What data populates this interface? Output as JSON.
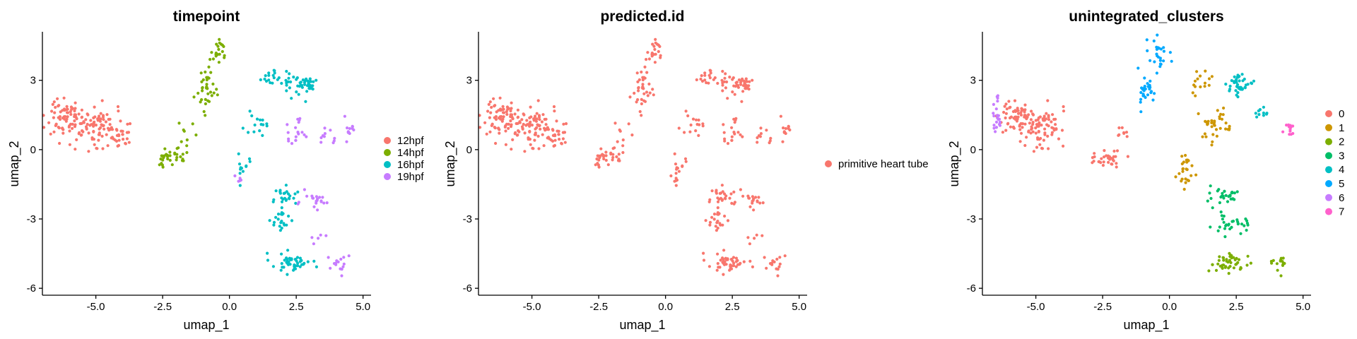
{
  "chart_data": [
    {
      "type": "scatter",
      "title": "timepoint",
      "xlabel": "umap_1",
      "ylabel": "umap_2",
      "xlim": [
        -7.0,
        5.3
      ],
      "ylim": [
        -6.3,
        5.1
      ],
      "xticks": [
        "-5.0",
        "-2.5",
        "0.0",
        "2.5",
        "5.0"
      ],
      "yticks": [
        "-6",
        "-3",
        "0",
        "3"
      ],
      "grid": false,
      "legend_position": "right",
      "series": [
        {
          "name": "12hpf",
          "color": "#F8766D",
          "regions": [
            {
              "center": [
                -6.1,
                1.3
              ],
              "spread": [
                0.55,
                0.8
              ],
              "count": 80
            },
            {
              "center": [
                -4.9,
                1.0
              ],
              "spread": [
                0.55,
                0.7
              ],
              "count": 75
            },
            {
              "center": [
                -4.0,
                0.6
              ],
              "spread": [
                0.4,
                0.45
              ],
              "count": 25
            }
          ]
        },
        {
          "name": "14hpf",
          "color": "#7CAE00",
          "regions": [
            {
              "center": [
                -2.3,
                -0.4
              ],
              "spread": [
                0.5,
                0.3
              ],
              "count": 32
            },
            {
              "center": [
                -1.6,
                0.7
              ],
              "spread": [
                0.3,
                0.4
              ],
              "count": 8
            },
            {
              "center": [
                -0.9,
                2.6
              ],
              "spread": [
                0.35,
                0.7
              ],
              "count": 35
            },
            {
              "center": [
                -0.4,
                4.3
              ],
              "spread": [
                0.25,
                0.4
              ],
              "count": 20
            }
          ]
        },
        {
          "name": "16hpf",
          "color": "#00BFC4",
          "regions": [
            {
              "center": [
                1.6,
                3.1
              ],
              "spread": [
                0.4,
                0.35
              ],
              "count": 20
            },
            {
              "center": [
                2.7,
                2.8
              ],
              "spread": [
                0.5,
                0.45
              ],
              "count": 45
            },
            {
              "center": [
                1.0,
                1.1
              ],
              "spread": [
                0.35,
                0.45
              ],
              "count": 15
            },
            {
              "center": [
                0.5,
                -0.7
              ],
              "spread": [
                0.25,
                0.6
              ],
              "count": 12
            },
            {
              "center": [
                2.0,
                -2.0
              ],
              "spread": [
                0.45,
                0.45
              ],
              "count": 25
            },
            {
              "center": [
                2.0,
                -3.1
              ],
              "spread": [
                0.45,
                0.4
              ],
              "count": 20
            },
            {
              "center": [
                2.3,
                -4.9
              ],
              "spread": [
                0.6,
                0.35
              ],
              "count": 45
            }
          ]
        },
        {
          "name": "19hpf",
          "color": "#C77CFF",
          "regions": [
            {
              "center": [
                4.5,
                0.9
              ],
              "spread": [
                0.2,
                0.35
              ],
              "count": 12
            },
            {
              "center": [
                3.6,
                0.6
              ],
              "spread": [
                0.3,
                0.4
              ],
              "count": 10
            },
            {
              "center": [
                2.4,
                0.7
              ],
              "spread": [
                0.45,
                0.45
              ],
              "count": 18
            },
            {
              "center": [
                0.3,
                -1.2
              ],
              "spread": [
                0.15,
                0.25
              ],
              "count": 5
            },
            {
              "center": [
                3.2,
                -2.2
              ],
              "spread": [
                0.5,
                0.4
              ],
              "count": 20
            },
            {
              "center": [
                4.1,
                -4.9
              ],
              "spread": [
                0.25,
                0.35
              ],
              "count": 15
            },
            {
              "center": [
                3.3,
                -3.8
              ],
              "spread": [
                0.3,
                0.3
              ],
              "count": 5
            }
          ]
        }
      ]
    },
    {
      "type": "scatter",
      "title": "predicted.id",
      "xlabel": "umap_1",
      "ylabel": "umap_2",
      "xlim": [
        -7.0,
        5.3
      ],
      "ylim": [
        -6.3,
        5.1
      ],
      "xticks": [
        "-5.0",
        "-2.5",
        "0.0",
        "2.5",
        "5.0"
      ],
      "yticks": [
        "-6",
        "-3",
        "0",
        "3"
      ],
      "grid": false,
      "legend_position": "right",
      "series": [
        {
          "name": "primitive heart tube",
          "color": "#F8766D",
          "regions": [
            {
              "center": [
                -6.1,
                1.3
              ],
              "spread": [
                0.55,
                0.8
              ],
              "count": 80
            },
            {
              "center": [
                -4.9,
                1.0
              ],
              "spread": [
                0.55,
                0.7
              ],
              "count": 75
            },
            {
              "center": [
                -4.0,
                0.6
              ],
              "spread": [
                0.4,
                0.45
              ],
              "count": 25
            },
            {
              "center": [
                -2.3,
                -0.4
              ],
              "spread": [
                0.5,
                0.3
              ],
              "count": 32
            },
            {
              "center": [
                -1.6,
                0.7
              ],
              "spread": [
                0.3,
                0.4
              ],
              "count": 8
            },
            {
              "center": [
                -0.9,
                2.6
              ],
              "spread": [
                0.35,
                0.7
              ],
              "count": 35
            },
            {
              "center": [
                -0.4,
                4.3
              ],
              "spread": [
                0.25,
                0.4
              ],
              "count": 20
            },
            {
              "center": [
                1.6,
                3.1
              ],
              "spread": [
                0.4,
                0.35
              ],
              "count": 20
            },
            {
              "center": [
                2.7,
                2.8
              ],
              "spread": [
                0.5,
                0.45
              ],
              "count": 45
            },
            {
              "center": [
                1.0,
                1.1
              ],
              "spread": [
                0.35,
                0.45
              ],
              "count": 15
            },
            {
              "center": [
                0.5,
                -0.7
              ],
              "spread": [
                0.25,
                0.6
              ],
              "count": 12
            },
            {
              "center": [
                2.0,
                -2.0
              ],
              "spread": [
                0.45,
                0.45
              ],
              "count": 25
            },
            {
              "center": [
                2.0,
                -3.1
              ],
              "spread": [
                0.45,
                0.4
              ],
              "count": 20
            },
            {
              "center": [
                2.3,
                -4.9
              ],
              "spread": [
                0.6,
                0.35
              ],
              "count": 45
            },
            {
              "center": [
                4.5,
                0.9
              ],
              "spread": [
                0.2,
                0.35
              ],
              "count": 12
            },
            {
              "center": [
                3.6,
                0.6
              ],
              "spread": [
                0.3,
                0.4
              ],
              "count": 10
            },
            {
              "center": [
                2.4,
                0.7
              ],
              "spread": [
                0.45,
                0.45
              ],
              "count": 18
            },
            {
              "center": [
                0.3,
                -1.2
              ],
              "spread": [
                0.15,
                0.25
              ],
              "count": 5
            },
            {
              "center": [
                3.2,
                -2.2
              ],
              "spread": [
                0.5,
                0.4
              ],
              "count": 20
            },
            {
              "center": [
                4.1,
                -4.9
              ],
              "spread": [
                0.25,
                0.35
              ],
              "count": 15
            },
            {
              "center": [
                3.3,
                -3.8
              ],
              "spread": [
                0.3,
                0.3
              ],
              "count": 5
            }
          ]
        }
      ]
    },
    {
      "type": "scatter",
      "title": "unintegrated_clusters",
      "xlabel": "umap_1",
      "ylabel": "umap_2",
      "xlim": [
        -7.0,
        5.3
      ],
      "ylim": [
        -6.3,
        5.1
      ],
      "xticks": [
        "-5.0",
        "-2.5",
        "0.0",
        "2.5",
        "5.0"
      ],
      "yticks": [
        "-6",
        "-3",
        "0",
        "3"
      ],
      "grid": false,
      "legend_position": "right",
      "series": [
        {
          "name": "0",
          "color": "#F8766D",
          "regions": [
            {
              "center": [
                -5.7,
                1.3
              ],
              "spread": [
                0.5,
                0.7
              ],
              "count": 70
            },
            {
              "center": [
                -4.7,
                1.0
              ],
              "spread": [
                0.55,
                0.7
              ],
              "count": 70
            },
            {
              "center": [
                -2.3,
                -0.4
              ],
              "spread": [
                0.5,
                0.3
              ],
              "count": 32
            },
            {
              "center": [
                -1.6,
                0.7
              ],
              "spread": [
                0.3,
                0.4
              ],
              "count": 8
            }
          ]
        },
        {
          "name": "1",
          "color": "#CD9600",
          "regions": [
            {
              "center": [
                1.1,
                2.8
              ],
              "spread": [
                0.35,
                0.4
              ],
              "count": 15
            },
            {
              "center": [
                1.6,
                1.0
              ],
              "spread": [
                0.55,
                0.5
              ],
              "count": 35
            },
            {
              "center": [
                0.6,
                -0.9
              ],
              "spread": [
                0.3,
                0.6
              ],
              "count": 25
            }
          ]
        },
        {
          "name": "2",
          "color": "#7CAE00",
          "regions": [
            {
              "center": [
                2.2,
                -4.9
              ],
              "spread": [
                0.55,
                0.35
              ],
              "count": 45
            },
            {
              "center": [
                4.1,
                -4.9
              ],
              "spread": [
                0.25,
                0.35
              ],
              "count": 15
            }
          ]
        },
        {
          "name": "3",
          "color": "#00BE67",
          "regions": [
            {
              "center": [
                2.0,
                -2.0
              ],
              "spread": [
                0.5,
                0.4
              ],
              "count": 30
            },
            {
              "center": [
                2.3,
                -3.2
              ],
              "spread": [
                0.55,
                0.4
              ],
              "count": 30
            }
          ]
        },
        {
          "name": "4",
          "color": "#00BFC4",
          "regions": [
            {
              "center": [
                2.6,
                2.8
              ],
              "spread": [
                0.45,
                0.45
              ],
              "count": 40
            },
            {
              "center": [
                3.4,
                1.6
              ],
              "spread": [
                0.3,
                0.35
              ],
              "count": 10
            }
          ]
        },
        {
          "name": "5",
          "color": "#00A9FF",
          "regions": [
            {
              "center": [
                -0.4,
                4.1
              ],
              "spread": [
                0.3,
                0.55
              ],
              "count": 25
            },
            {
              "center": [
                -0.9,
                2.6
              ],
              "spread": [
                0.3,
                0.6
              ],
              "count": 28
            }
          ]
        },
        {
          "name": "6",
          "color": "#C77CFF",
          "regions": [
            {
              "center": [
                -6.5,
                1.4
              ],
              "spread": [
                0.15,
                0.65
              ],
              "count": 22
            }
          ]
        },
        {
          "name": "7",
          "color": "#FF61CC",
          "regions": [
            {
              "center": [
                4.5,
                0.9
              ],
              "spread": [
                0.2,
                0.35
              ],
              "count": 12
            }
          ]
        }
      ]
    }
  ]
}
